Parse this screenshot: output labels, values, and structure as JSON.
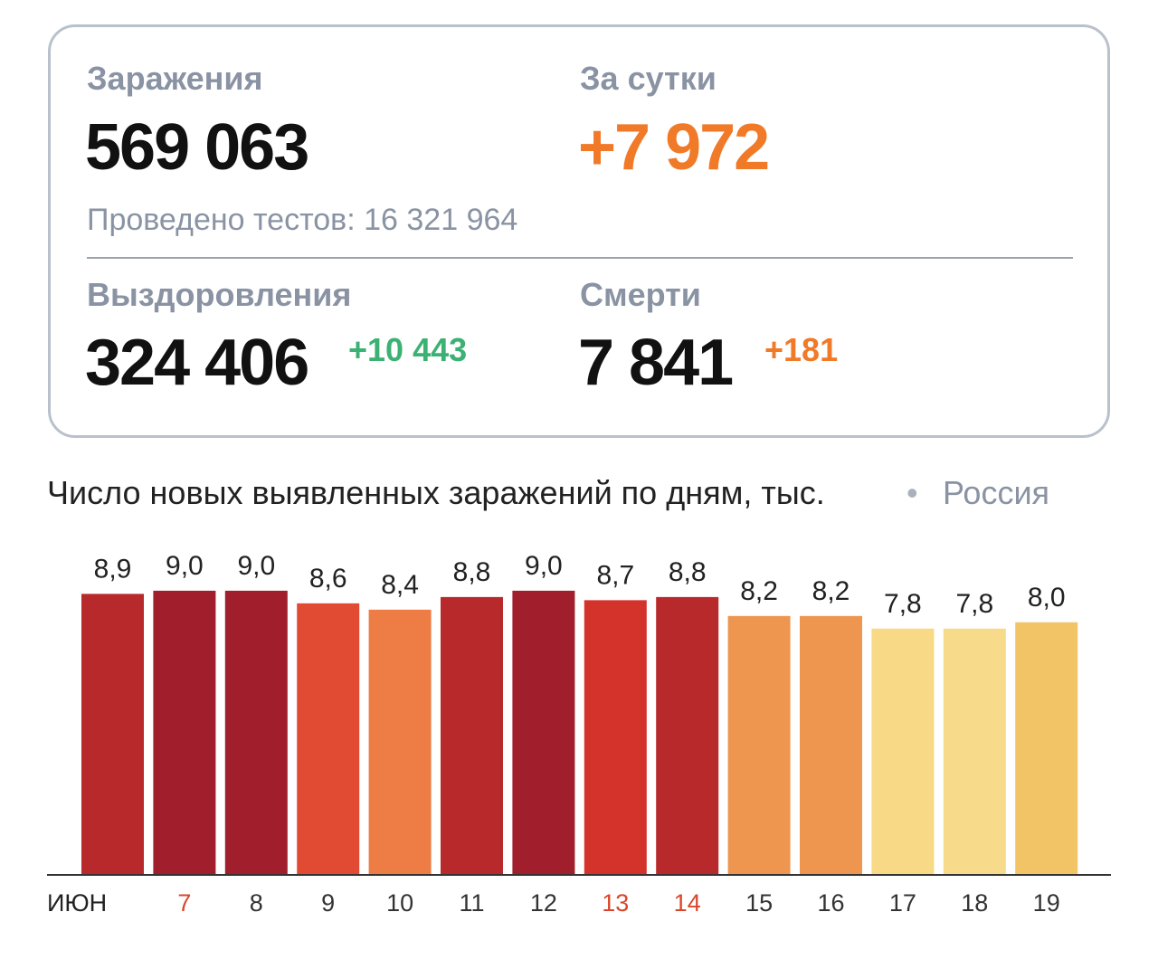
{
  "stats": {
    "infections": {
      "label": "Заражения",
      "value": "569 063"
    },
    "daily": {
      "label": "За сутки",
      "value": "+7 972"
    },
    "tests": "Проведено тестов: 16 321 964",
    "recoveries": {
      "label": "Выздоровления",
      "value": "324 406",
      "delta": "+10 443"
    },
    "deaths": {
      "label": "Смерти",
      "value": "7 841",
      "delta": "+181"
    }
  },
  "chart_data": {
    "type": "bar",
    "title": "Число новых выявленных заражений по дням, тыс.",
    "region": "Россия",
    "categories": [
      "ИЮН",
      "7",
      "8",
      "9",
      "10",
      "11",
      "12",
      "13",
      "14",
      "15",
      "16",
      "17",
      "18",
      "19"
    ],
    "category_colors": [
      "#222222",
      "#d9472b",
      "#333333",
      "#333333",
      "#333333",
      "#333333",
      "#333333",
      "#d9472b",
      "#d9472b",
      "#333333",
      "#333333",
      "#333333",
      "#333333",
      "#333333"
    ],
    "values": [
      8.9,
      9.0,
      9.0,
      8.6,
      8.4,
      8.8,
      9.0,
      8.7,
      8.8,
      8.2,
      8.2,
      7.8,
      7.8,
      8.0
    ],
    "value_labels": [
      "8,9",
      "9,0",
      "9,0",
      "8,6",
      "8,4",
      "8,8",
      "9,0",
      "8,7",
      "8,8",
      "8,2",
      "8,2",
      "7,8",
      "7,8",
      "8,0"
    ],
    "colors": [
      "#b8292b",
      "#a11f2c",
      "#a11f2c",
      "#e24b33",
      "#ed7d45",
      "#b8292b",
      "#a11f2c",
      "#d4332b",
      "#b8292b",
      "#ee9650",
      "#ee9650",
      "#f7d986",
      "#f7da8a",
      "#f3c466"
    ]
  }
}
